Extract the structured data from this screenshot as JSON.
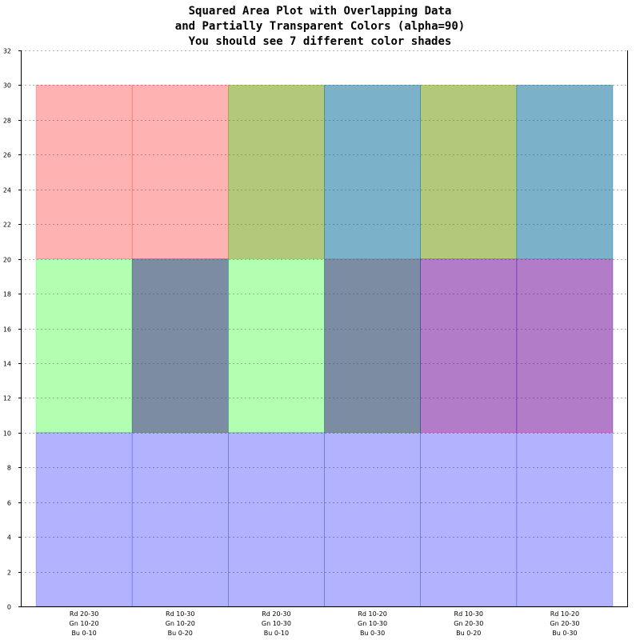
{
  "chart_data": {
    "type": "area",
    "title": [
      "Squared Area Plot with Overlapping Data",
      "and Partially Transparent Colors (alpha=90)",
      "You should see 7 different color shades"
    ],
    "xlabel": "",
    "ylabel": "",
    "ylim": [
      0,
      32
    ],
    "yticks": [
      0,
      2,
      4,
      6,
      8,
      10,
      12,
      14,
      16,
      18,
      20,
      22,
      24,
      26,
      28,
      30,
      32
    ],
    "grid": true,
    "categories": [
      [
        "Rd 20-30",
        "Gn 10-20",
        "Bu 0-10"
      ],
      [
        "Rd 10-30",
        "Gn 10-20",
        "Bu 0-20"
      ],
      [
        "Rd 20-30",
        "Gn 10-30",
        "Bu 0-10"
      ],
      [
        "Rd 10-20",
        "Gn 10-30",
        "Bu 0-30"
      ],
      [
        "Rd 10-30",
        "Gn 20-30",
        "Bu 0-20"
      ],
      [
        "Rd 10-20",
        "Gn 20-30",
        "Bu 0-30"
      ]
    ],
    "fill_opacity": 0.3,
    "series": [
      {
        "color": "#ff0000",
        "ranges": [
          [
            20,
            30
          ],
          [
            10,
            30
          ],
          [
            20,
            30
          ],
          [
            10,
            20
          ],
          [
            10,
            30
          ],
          [
            10,
            20
          ]
        ]
      },
      {
        "color": "#00ff00",
        "ranges": [
          [
            10,
            20
          ],
          [
            10,
            20
          ],
          [
            10,
            30
          ],
          [
            10,
            30
          ],
          [
            20,
            30
          ],
          [
            20,
            30
          ]
        ]
      },
      {
        "color": "#0000ff",
        "ranges": [
          [
            0,
            10
          ],
          [
            0,
            20
          ],
          [
            0,
            10
          ],
          [
            0,
            30
          ],
          [
            0,
            20
          ],
          [
            0,
            30
          ]
        ]
      }
    ]
  }
}
